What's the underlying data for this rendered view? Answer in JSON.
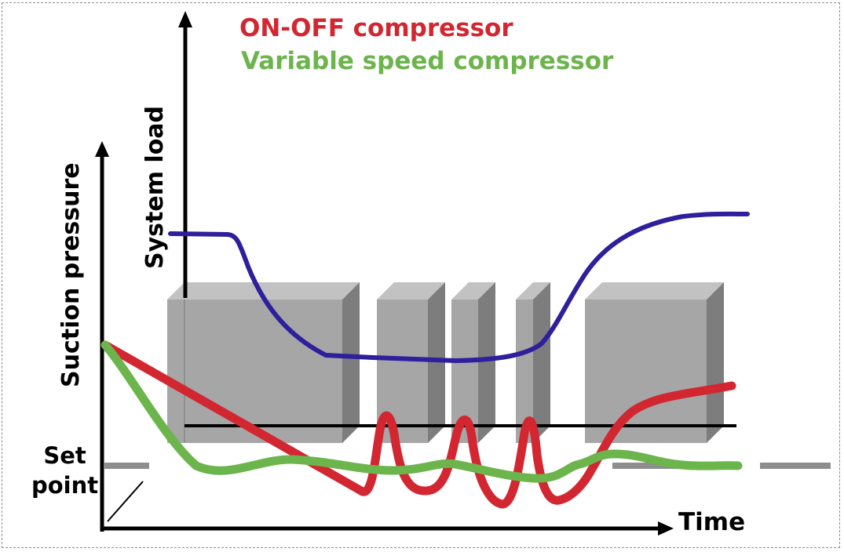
{
  "legend": {
    "onoff": {
      "label": "ON-OFF compressor",
      "color": "#d22630"
    },
    "varspeed": {
      "label": "Variable speed compressor",
      "color": "#6cb44c"
    }
  },
  "axes": {
    "x_label": "Time",
    "y_left_label": "Suction pressure",
    "y_right_label": "System load"
  },
  "setpoint": {
    "line1": "Set",
    "line2": "point"
  },
  "colors": {
    "load_curve": "#2e1f9c",
    "compressor_block": "#a6a6a6",
    "setpoint_line": "#8e8e8e"
  }
}
